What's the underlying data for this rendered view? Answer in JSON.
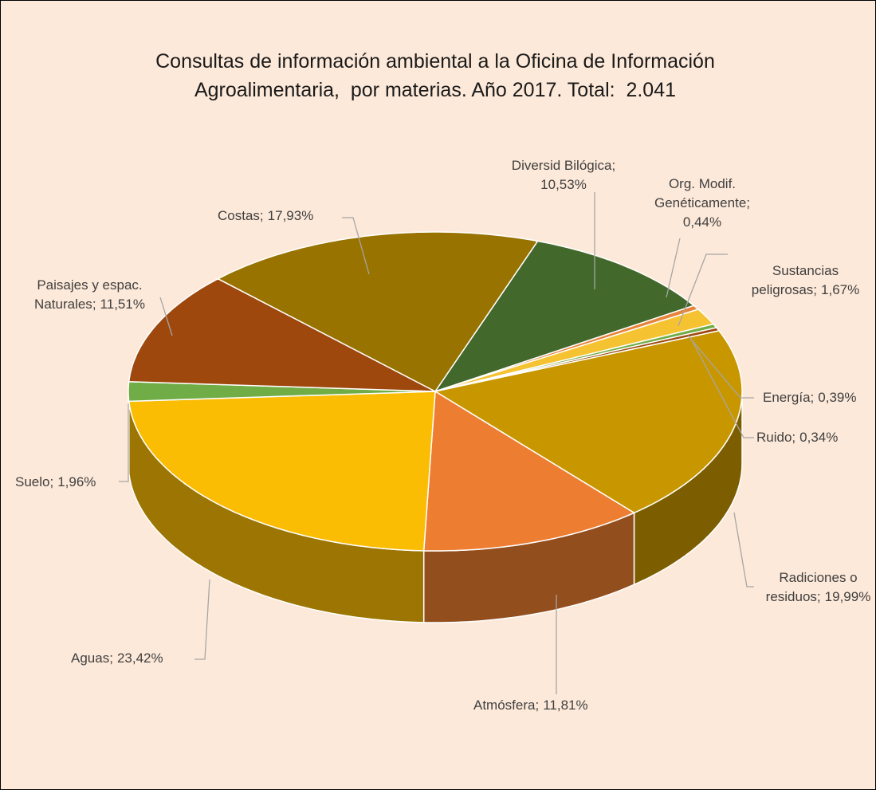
{
  "chart_data": {
    "type": "pie",
    "title": "Consultas de información ambiental a la Oficina de Información Agroalimentaria,  por materias. Año 2017. Total:  2.041",
    "label_separator": ";",
    "categories": [
      "Diversid Bilógica",
      "Org. Modif. Genéticamente",
      "Sustancias peligrosas",
      "Energía",
      "Ruido",
      "Radiciones o residuos",
      "Atmósfera",
      "Aguas",
      "Suelo",
      "Paisajes y espac. Naturales",
      "Costas"
    ],
    "values": [
      10.53,
      0.44,
      1.67,
      0.39,
      0.34,
      19.99,
      11.81,
      23.42,
      1.96,
      11.51,
      17.93
    ],
    "value_labels": [
      "10,53%",
      "0,44%",
      "1,67%",
      "0,39%",
      "0,34%",
      "19,99%",
      "11,81%",
      "23,42%",
      "1,96%",
      "11,51%",
      "17,93%"
    ],
    "colors": [
      "#43682b",
      "#e8843a",
      "#f5c232",
      "#70ad47",
      "#9e480e",
      "#c89700",
      "#ed7d31",
      "#fbbc04",
      "#70ad47",
      "#9e480e",
      "#997300"
    ]
  }
}
